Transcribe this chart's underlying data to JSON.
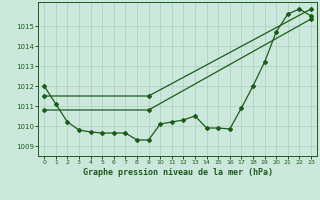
{
  "title": "Graphe pression niveau de la mer (hPa)",
  "background_color": "#cce8dc",
  "grid_color": "#aacfbe",
  "line_color": "#1a5c1a",
  "xlim": [
    -0.5,
    23.5
  ],
  "ylim": [
    1008.5,
    1016.2
  ],
  "xticks": [
    0,
    1,
    2,
    3,
    4,
    5,
    6,
    7,
    8,
    9,
    10,
    11,
    12,
    13,
    14,
    15,
    16,
    17,
    18,
    19,
    20,
    21,
    22,
    23
  ],
  "yticks": [
    1009,
    1010,
    1011,
    1012,
    1013,
    1014,
    1015
  ],
  "series1_x": [
    0,
    1,
    2,
    3,
    4,
    5,
    6,
    7,
    8,
    9,
    10,
    11,
    12,
    13,
    14,
    15,
    16,
    17,
    18,
    19,
    20,
    21,
    22,
    23
  ],
  "series1_y": [
    1012.0,
    1011.1,
    1010.2,
    1009.8,
    1009.7,
    1009.65,
    1009.65,
    1009.65,
    1009.3,
    1009.3,
    1010.1,
    1010.2,
    1010.3,
    1010.5,
    1009.9,
    1009.9,
    1009.85,
    1010.9,
    1012.0,
    1013.2,
    1014.7,
    1015.6,
    1015.85,
    1015.5
  ],
  "series2_x": [
    0,
    9,
    23
  ],
  "series2_y": [
    1010.8,
    1010.8,
    1015.35
  ],
  "series3_x": [
    0,
    9,
    23
  ],
  "series3_y": [
    1011.5,
    1011.5,
    1015.85
  ],
  "marker_style": "D",
  "marker_size": 2.0,
  "line_width": 0.9
}
